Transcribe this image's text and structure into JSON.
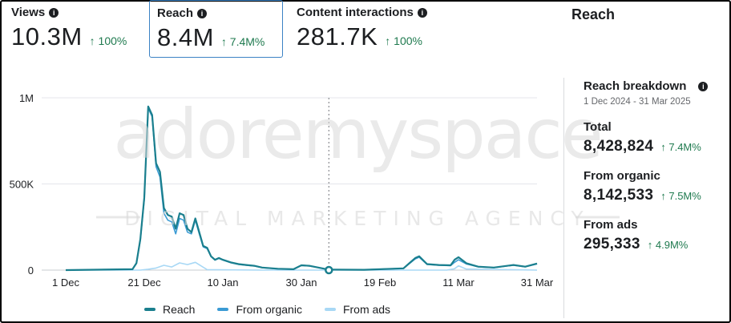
{
  "metrics": [
    {
      "label": "Views",
      "value": "10.3M",
      "change": "↑ 100%"
    },
    {
      "label": "Reach",
      "value": "8.4M",
      "change": "↑ 7.4M%"
    },
    {
      "label": "Content interactions",
      "value": "281.7K",
      "change": "↑ 100%"
    }
  ],
  "panel": {
    "heading": "Reach",
    "title": "Reach breakdown",
    "date_range": "1 Dec 2024 - 31 Mar 2025",
    "total": {
      "label": "Total",
      "value": "8,428,824",
      "change": "↑ 7.4M%"
    },
    "organic": {
      "label": "From organic",
      "value": "8,142,533",
      "change": "↑ 7.5M%"
    },
    "ads": {
      "label": "From ads",
      "value": "295,333",
      "change": "↑ 4.9M%"
    }
  },
  "watermark": {
    "line1": "adoremyspace",
    "line2": "DIGITAL MARKETING AGENCY"
  },
  "colors": {
    "reach": "#1a7f8e",
    "organic": "#3b9bd4",
    "ads": "#a8d8f5",
    "positive": "#1f7a4f"
  },
  "chart_data": {
    "type": "line",
    "xlabel": "",
    "ylabel": "",
    "y_ticks": [
      {
        "value": 0,
        "label": "0"
      },
      {
        "value": 500000,
        "label": "500K"
      },
      {
        "value": 1000000,
        "label": "1M"
      }
    ],
    "ylim": [
      0,
      1000000
    ],
    "x_ticks": [
      {
        "date": "2024-12-01",
        "label": "1 Dec"
      },
      {
        "date": "2024-12-21",
        "label": "21 Dec"
      },
      {
        "date": "2025-01-10",
        "label": "10 Jan"
      },
      {
        "date": "2025-01-30",
        "label": "30 Jan"
      },
      {
        "date": "2025-02-19",
        "label": "19 Feb"
      },
      {
        "date": "2025-03-11",
        "label": "11 Mar"
      },
      {
        "date": "2025-03-31",
        "label": "31 Mar"
      }
    ],
    "xlim": [
      "2024-12-01",
      "2025-03-31"
    ],
    "marker_date": "2025-02-06",
    "grid": true,
    "legend_position": "bottom",
    "series": [
      {
        "name": "Reach",
        "x": [
          "2024-12-01",
          "2024-12-18",
          "2024-12-19",
          "2024-12-20",
          "2024-12-21",
          "2024-12-22",
          "2024-12-23",
          "2024-12-24",
          "2024-12-25",
          "2024-12-26",
          "2024-12-27",
          "2024-12-28",
          "2024-12-29",
          "2024-12-30",
          "2024-12-31",
          "2025-01-01",
          "2025-01-02",
          "2025-01-03",
          "2025-01-04",
          "2025-01-05",
          "2025-01-06",
          "2025-01-07",
          "2025-01-08",
          "2025-01-09",
          "2025-01-10",
          "2025-01-12",
          "2025-01-14",
          "2025-01-16",
          "2025-01-18",
          "2025-01-20",
          "2025-01-24",
          "2025-01-28",
          "2025-01-30",
          "2025-02-01",
          "2025-02-06",
          "2025-02-15",
          "2025-02-25",
          "2025-02-28",
          "2025-03-01",
          "2025-03-03",
          "2025-03-06",
          "2025-03-09",
          "2025-03-10",
          "2025-03-11",
          "2025-03-13",
          "2025-03-16",
          "2025-03-20",
          "2025-03-25",
          "2025-03-28",
          "2025-03-31"
        ],
        "y": [
          0,
          5000,
          40000,
          180000,
          420000,
          950000,
          900000,
          620000,
          570000,
          360000,
          320000,
          310000,
          240000,
          330000,
          320000,
          240000,
          220000,
          300000,
          220000,
          140000,
          130000,
          80000,
          60000,
          70000,
          60000,
          45000,
          35000,
          30000,
          25000,
          15000,
          8000,
          5000,
          28000,
          25000,
          3000,
          2000,
          10000,
          70000,
          80000,
          35000,
          30000,
          28000,
          60000,
          75000,
          40000,
          20000,
          15000,
          30000,
          20000,
          38000
        ]
      },
      {
        "name": "From organic",
        "x": [
          "2024-12-01",
          "2024-12-18",
          "2024-12-19",
          "2024-12-20",
          "2024-12-21",
          "2024-12-22",
          "2024-12-23",
          "2024-12-24",
          "2024-12-25",
          "2024-12-26",
          "2024-12-27",
          "2024-12-28",
          "2024-12-29",
          "2024-12-30",
          "2024-12-31",
          "2025-01-01",
          "2025-01-02",
          "2025-01-03",
          "2025-01-04",
          "2025-01-05",
          "2025-01-06",
          "2025-01-07",
          "2025-01-08",
          "2025-01-09",
          "2025-01-10",
          "2025-01-12",
          "2025-01-14",
          "2025-01-16",
          "2025-01-18",
          "2025-01-20",
          "2025-01-24",
          "2025-01-28",
          "2025-01-30",
          "2025-02-01",
          "2025-02-06",
          "2025-02-15",
          "2025-02-25",
          "2025-02-28",
          "2025-03-01",
          "2025-03-03",
          "2025-03-06",
          "2025-03-09",
          "2025-03-10",
          "2025-03-11",
          "2025-03-13",
          "2025-03-16",
          "2025-03-20",
          "2025-03-25",
          "2025-03-28",
          "2025-03-31"
        ],
        "y": [
          0,
          5000,
          38000,
          175000,
          410000,
          940000,
          890000,
          600000,
          540000,
          330000,
          290000,
          280000,
          210000,
          300000,
          290000,
          220000,
          210000,
          290000,
          210000,
          135000,
          125000,
          78000,
          58000,
          68000,
          58000,
          43000,
          33000,
          28000,
          24000,
          14000,
          7000,
          5000,
          27000,
          24000,
          3000,
          2000,
          10000,
          65000,
          75000,
          33000,
          28000,
          26000,
          45000,
          60000,
          36000,
          19000,
          14000,
          29000,
          19000,
          36000
        ]
      },
      {
        "name": "From ads",
        "x": [
          "2024-12-01",
          "2024-12-20",
          "2024-12-22",
          "2024-12-24",
          "2024-12-26",
          "2024-12-28",
          "2024-12-30",
          "2025-01-01",
          "2025-01-03",
          "2025-01-06",
          "2025-01-20",
          "2025-03-08",
          "2025-03-10",
          "2025-03-11",
          "2025-03-13",
          "2025-03-31"
        ],
        "y": [
          0,
          0,
          5000,
          12000,
          28000,
          18000,
          42000,
          32000,
          45000,
          3000,
          0,
          0,
          8000,
          25000,
          6000,
          0
        ]
      }
    ]
  }
}
